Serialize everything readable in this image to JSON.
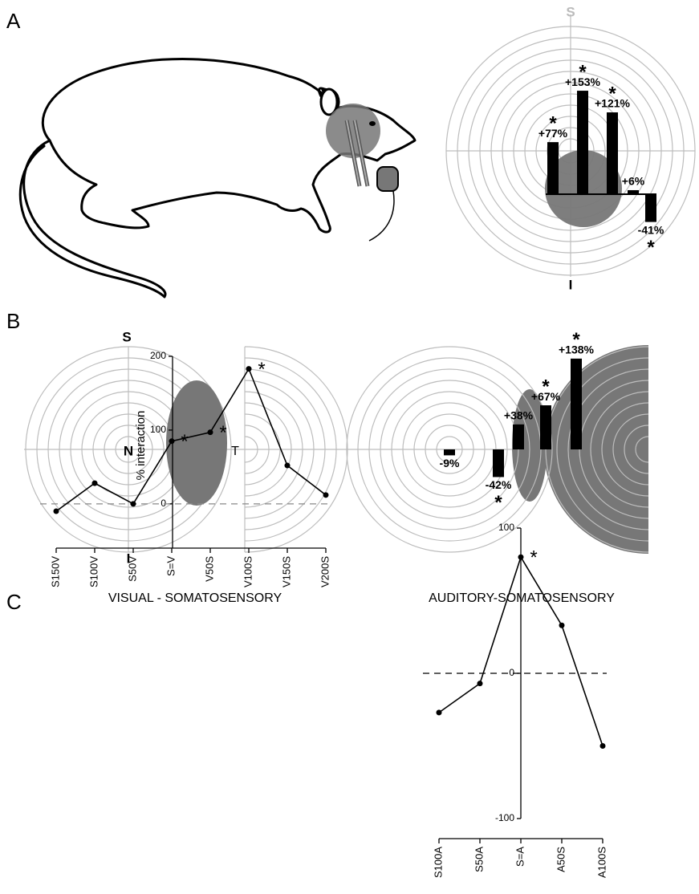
{
  "panel_labels": [
    "A",
    "B",
    "C"
  ],
  "chart_data": [
    {
      "type": "polar-bar",
      "direction_labels": {
        "top": "S",
        "bottom": "I"
      },
      "values": [
        77,
        153,
        121,
        6,
        -41
      ],
      "value_labels": [
        "+77%",
        "+153%",
        "+121%",
        "+6%",
        "-41%"
      ],
      "significant": [
        true,
        true,
        true,
        false,
        true
      ],
      "significance_symbol": "*",
      "color": "#000000",
      "ylim": [
        -60,
        180
      ]
    },
    {
      "type": "polar-bar",
      "direction_labels": {
        "top": "S",
        "center": "N",
        "bottom": "I",
        "right": "T"
      },
      "values": [
        -9,
        -42,
        38,
        67,
        138
      ],
      "value_labels": [
        "-9%",
        "-42%",
        "+38%",
        "+67%",
        "+138%"
      ],
      "significant": [
        false,
        true,
        false,
        true,
        true
      ],
      "significance_symbol": "*",
      "color": "#000000",
      "ylim": [
        -80,
        150
      ]
    },
    {
      "type": "line",
      "title": "VISUAL - SOMATOSENSORY",
      "y_label": "% interaction",
      "categories": [
        "S150V",
        "S100V",
        "S50V",
        "S=V",
        "V50S",
        "V100S",
        "V150S",
        "V200S"
      ],
      "values": [
        -10,
        28,
        0,
        85,
        97,
        183,
        52,
        12
      ],
      "significant": [
        false,
        false,
        false,
        true,
        true,
        true,
        false,
        false
      ],
      "significance_symbol": "*",
      "color": "#000000",
      "zero_line": true,
      "ylim": [
        -60,
        200
      ],
      "yticks": [
        0,
        100,
        200
      ]
    },
    {
      "type": "line",
      "title": "AUDITORY-SOMATOSENSORY",
      "categories": [
        "S100A",
        "S50A",
        "S=A",
        "A50S",
        "A100S"
      ],
      "values": [
        -27,
        -7,
        80,
        33,
        -50
      ],
      "significant": [
        false,
        false,
        true,
        false,
        false
      ],
      "significance_symbol": "*",
      "color": "#000000",
      "zero_line": true,
      "ylim": [
        -100,
        100
      ],
      "yticks": [
        -100,
        0,
        100
      ]
    }
  ]
}
